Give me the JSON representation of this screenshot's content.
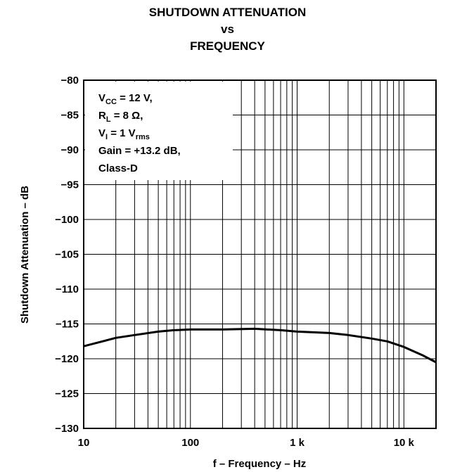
{
  "title": {
    "line1": "SHUTDOWN ATTENUATION",
    "line2": "vs",
    "line3": "FREQUENCY"
  },
  "chart_data": {
    "type": "line",
    "xscale": "log",
    "xlim": [
      10,
      20000
    ],
    "ylim": [
      -130,
      -80
    ],
    "grid": true,
    "xlabel": "f – Frequency – Hz",
    "ylabel": "Shutdown Attenuation – dB",
    "x_ticks": [
      {
        "value": 10,
        "label": "10"
      },
      {
        "value": 100,
        "label": "100"
      },
      {
        "value": 1000,
        "label": "1 k"
      },
      {
        "value": 10000,
        "label": "10 k"
      }
    ],
    "y_ticks": [
      {
        "value": -80,
        "label": "−80"
      },
      {
        "value": -85,
        "label": "−85"
      },
      {
        "value": -90,
        "label": "−90"
      },
      {
        "value": -95,
        "label": "−95"
      },
      {
        "value": -100,
        "label": "−100"
      },
      {
        "value": -105,
        "label": "−105"
      },
      {
        "value": -110,
        "label": "−110"
      },
      {
        "value": -115,
        "label": "−115"
      },
      {
        "value": -120,
        "label": "−120"
      },
      {
        "value": -125,
        "label": "−125"
      },
      {
        "value": -130,
        "label": "−130"
      }
    ],
    "series": [
      {
        "x": [
          10,
          15,
          20,
          30,
          50,
          70,
          100,
          200,
          400,
          700,
          1000,
          2000,
          3000,
          5000,
          7000,
          10000,
          15000,
          20000
        ],
        "y": [
          -118.2,
          -117.5,
          -117.0,
          -116.6,
          -116.1,
          -115.9,
          -115.8,
          -115.8,
          -115.7,
          -115.9,
          -116.1,
          -116.3,
          -116.6,
          -117.1,
          -117.5,
          -118.3,
          -119.5,
          -120.5
        ]
      }
    ],
    "annotation": [
      {
        "main": "V",
        "sub": "CC",
        "rest": " = 12 V,"
      },
      {
        "main": "R",
        "sub": "L",
        "rest": " = 8 Ω,"
      },
      {
        "main": "V",
        "sub": "I",
        "rest": " = 1 V",
        "sub2": "rms"
      },
      {
        "main": "Gain = +13.2 dB,",
        "sub": "",
        "rest": ""
      },
      {
        "main": "Class-D",
        "sub": "",
        "rest": ""
      }
    ],
    "line_color": "#000000"
  }
}
